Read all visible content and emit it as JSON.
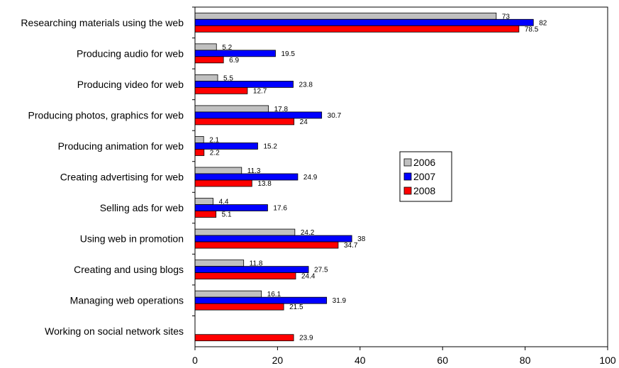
{
  "chart_data": {
    "type": "bar",
    "orientation": "horizontal",
    "title": "",
    "xlabel": "",
    "ylabel": "",
    "xlim": [
      0,
      100
    ],
    "xticks": [
      0,
      20,
      40,
      60,
      80,
      100
    ],
    "grid": false,
    "legend_position": "right",
    "categories": [
      "Researching materials using the web",
      "Producing audio for web",
      "Producing video for web",
      "Producing photos, graphics for web",
      "Producing animation for web",
      "Creating advertising for web",
      "Selling ads for web",
      "Using web in promotion",
      "Creating and using blogs",
      "Managing web operations",
      "Working on social network sites"
    ],
    "series": [
      {
        "name": "2006",
        "color": "#c0c0c0",
        "values": [
          73,
          5.2,
          5.5,
          17.8,
          2.1,
          11.3,
          4.4,
          24.2,
          11.8,
          16.1,
          null
        ],
        "labels": [
          "73",
          "5.2",
          "5.5",
          "17.8",
          "2.1",
          "11.3",
          "4.4",
          "24.2",
          "11.8",
          "16.1",
          ""
        ]
      },
      {
        "name": "2007",
        "color": "#0000ff",
        "values": [
          82,
          19.5,
          23.8,
          30.7,
          15.2,
          24.9,
          17.6,
          38,
          27.5,
          31.9,
          null
        ],
        "labels": [
          "82",
          "19.5",
          "23.8",
          "30.7",
          "15.2",
          "24.9",
          "17.6",
          "38",
          "27.5",
          "31.9",
          ""
        ]
      },
      {
        "name": "2008",
        "color": "#ff0000",
        "values": [
          78.5,
          6.9,
          12.7,
          24,
          2.2,
          13.8,
          5.1,
          34.7,
          24.4,
          21.5,
          23.9
        ],
        "labels": [
          "78.5",
          "6.9",
          "12.7",
          "24",
          "2.2",
          "13.8",
          "5.1",
          "34.7",
          "24.4",
          "21.5",
          "23.9"
        ]
      }
    ]
  }
}
